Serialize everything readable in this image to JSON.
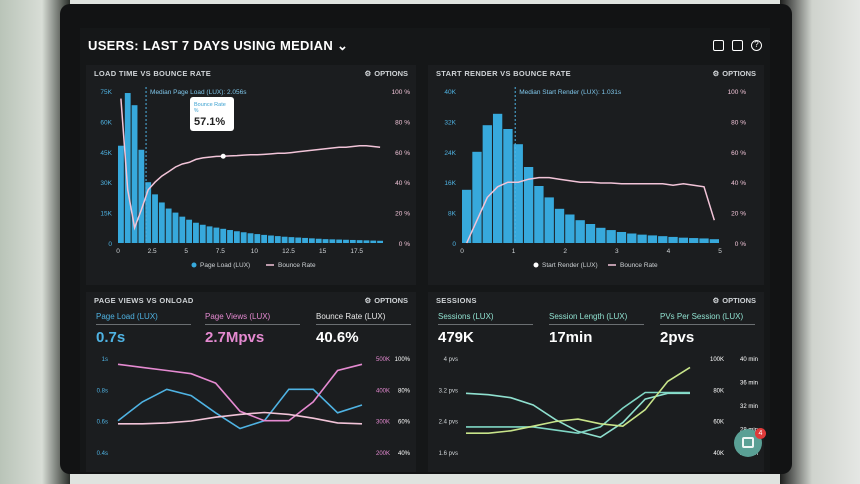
{
  "header": {
    "title": "USERS: LAST 7 DAYS USING MEDIAN",
    "icons": [
      "monitor-icon",
      "chart-icon",
      "help-icon"
    ]
  },
  "panel_load": {
    "title": "LOAD TIME VS BOUNCE RATE",
    "options_label": "OPTIONS",
    "tooltip_label": "Bounce Rate",
    "tooltip_sub": "%",
    "tooltip_value": "57.1%",
    "median_label": "Median Page Load (LUX): 2.056s"
  },
  "panel_render": {
    "title": "START RENDER VS BOUNCE RATE",
    "options_label": "OPTIONS",
    "median_label": "Median Start Render (LUX): 1.031s"
  },
  "panel_views": {
    "title": "PAGE VIEWS VS ONLOAD",
    "options_label": "OPTIONS",
    "metrics": [
      {
        "label": "Page Load (LUX)",
        "value": "0.7s"
      },
      {
        "label": "Page Views (LUX)",
        "value": "2.7Mpvs"
      },
      {
        "label": "Bounce Rate (LUX)",
        "value": "40.6%"
      }
    ]
  },
  "panel_sessions": {
    "title": "SESSIONS",
    "options_label": "OPTIONS",
    "metrics": [
      {
        "label": "Sessions (LUX)",
        "value": "479K"
      },
      {
        "label": "Session Length (LUX)",
        "value": "17min"
      },
      {
        "label": "PVs Per Session (LUX)",
        "value": "2pvs"
      }
    ]
  },
  "chat": {
    "badge": "4"
  },
  "colors": {
    "bar": "#37a9dc",
    "line": "#f2c4d8",
    "cyan": "#4fb3e3",
    "pink": "#e58ad1",
    "teal": "#8fe0cf",
    "lime": "#c8e48a"
  },
  "chart_data": [
    {
      "type": "bar",
      "title": "LOAD TIME VS BOUNCE RATE",
      "x": [
        0.25,
        0.75,
        1.25,
        1.75,
        2.25,
        2.75,
        3.25,
        3.75,
        4.25,
        4.75,
        5.25,
        5.75,
        6.25,
        6.75,
        7.25,
        7.75,
        8.25,
        8.75,
        9.25,
        9.75,
        10.25,
        10.75,
        11.25,
        11.75,
        12.25,
        12.75,
        13.25,
        13.75,
        14.25,
        14.75,
        15.25,
        15.75,
        16.25,
        16.75,
        17.25,
        17.75,
        18.25,
        18.75,
        19.25
      ],
      "series": [
        {
          "name": "Page Load (LUX)",
          "axis": "left",
          "values": [
            48000,
            74000,
            68000,
            46000,
            30000,
            24000,
            20000,
            17000,
            15000,
            13000,
            11500,
            10000,
            9000,
            8200,
            7600,
            7000,
            6400,
            5800,
            5300,
            4800,
            4400,
            4000,
            3700,
            3400,
            3100,
            2900,
            2700,
            2500,
            2300,
            2100,
            1900,
            1800,
            1700,
            1600,
            1500,
            1400,
            1300,
            1200,
            1100
          ]
        },
        {
          "name": "Bounce Rate",
          "axis": "right",
          "values": [
            95,
            35,
            10,
            22,
            35,
            40,
            44,
            47,
            50,
            52,
            53,
            55,
            56,
            56.5,
            57,
            57.1,
            57.3,
            57.5,
            57.8,
            58,
            58,
            58.3,
            58.6,
            59,
            59,
            59.5,
            60,
            60.5,
            61,
            61.5,
            62,
            62.5,
            63,
            63,
            63.5,
            64,
            64,
            63.5,
            63
          ]
        }
      ],
      "xticks": [
        "0",
        "2.5",
        "5",
        "7.5",
        "10",
        "12.5",
        "15",
        "17.5"
      ],
      "yticks_left": [
        "0",
        "15K",
        "30K",
        "45K",
        "60K",
        "75K"
      ],
      "yticks_right": [
        "0 %",
        "20 %",
        "40 %",
        "60 %",
        "80 %",
        "100 %"
      ],
      "ylim": [
        0,
        75000
      ],
      "ylim_right": [
        0,
        100
      ],
      "median_x": 2.056,
      "legend": [
        "Page Load (LUX)",
        "Bounce Rate"
      ]
    },
    {
      "type": "bar",
      "title": "START RENDER VS BOUNCE RATE",
      "x": [
        0.1,
        0.3,
        0.5,
        0.7,
        0.9,
        1.1,
        1.3,
        1.5,
        1.7,
        1.9,
        2.1,
        2.3,
        2.5,
        2.7,
        2.9,
        3.1,
        3.3,
        3.5,
        3.7,
        3.9,
        4.1,
        4.3,
        4.5,
        4.7,
        4.9
      ],
      "series": [
        {
          "name": "Start Render (LUX)",
          "axis": "left",
          "values": [
            14000,
            24000,
            31000,
            34000,
            30000,
            26000,
            20000,
            15000,
            12000,
            9000,
            7500,
            6000,
            5000,
            4000,
            3400,
            2900,
            2500,
            2200,
            2000,
            1800,
            1600,
            1400,
            1300,
            1200,
            1000
          ]
        },
        {
          "name": "Bounce Rate",
          "axis": "right",
          "values": [
            0,
            15,
            30,
            37,
            40,
            40,
            42,
            43,
            43,
            42,
            41,
            40,
            40,
            39.5,
            39.5,
            39,
            39,
            39,
            39,
            39,
            38,
            39,
            38,
            37,
            15
          ]
        }
      ],
      "xticks": [
        "0",
        "1",
        "2",
        "3",
        "4",
        "5"
      ],
      "yticks_left": [
        "0",
        "8K",
        "16K",
        "24K",
        "32K",
        "40K"
      ],
      "yticks_right": [
        "0 %",
        "20 %",
        "40 %",
        "60 %",
        "80 %",
        "100 %"
      ],
      "ylim": [
        0,
        40000
      ],
      "ylim_right": [
        0,
        100
      ],
      "median_x": 1.031,
      "legend": [
        "Start Render (LUX)",
        "Bounce Rate"
      ]
    },
    {
      "type": "line",
      "title": "PAGE VIEWS VS ONLOAD",
      "x": [
        0,
        1,
        2,
        3,
        4,
        5,
        6,
        7,
        8,
        9,
        10
      ],
      "series": [
        {
          "name": "Page Load (LUX)",
          "axis": "left",
          "values": [
            0.6,
            0.72,
            0.8,
            0.76,
            0.65,
            0.55,
            0.6,
            0.8,
            0.8,
            0.65,
            0.7
          ]
        },
        {
          "name": "Page Views (LUX)",
          "axis": "right_views",
          "values": [
            480,
            470,
            460,
            450,
            420,
            330,
            300,
            300,
            360,
            460,
            480
          ]
        },
        {
          "name": "Bounce Rate (LUX)",
          "axis": "right_pct",
          "values": [
            30,
            30,
            31,
            33,
            37,
            40,
            42,
            40,
            36,
            31,
            30
          ]
        }
      ],
      "yticks_left": [
        "0.4s",
        "0.6s",
        "0.8s",
        "1s"
      ],
      "yticks_views": [
        "200K",
        "300K",
        "400K",
        "500K"
      ],
      "yticks_pct": [
        "40%",
        "60%",
        "80%",
        "100%"
      ]
    },
    {
      "type": "line",
      "title": "SESSIONS",
      "x": [
        0,
        1,
        2,
        3,
        4,
        5,
        6,
        7,
        8,
        9,
        10
      ],
      "series": [
        {
          "name": "Sessions (LUX)",
          "axis": "left",
          "values": [
            3.2,
            3.15,
            3.05,
            2.8,
            2.3,
            1.9,
            1.7,
            2.2,
            3.0,
            3.2,
            3.2
          ]
        },
        {
          "name": "Session Length (LUX)",
          "axis": "right",
          "values": [
            20,
            20,
            20,
            20,
            19,
            18,
            20,
            26,
            31,
            31,
            31
          ]
        },
        {
          "name": "PVs Per Session (LUX)",
          "axis": "right",
          "values": [
            8,
            8,
            9,
            11,
            13,
            14,
            12,
            11,
            18,
            30,
            36
          ]
        }
      ],
      "yticks_left": [
        "1.6 pvs",
        "2.4 pvs",
        "3.2 pvs",
        "4 pvs"
      ],
      "yticks_mid": [
        "40K",
        "60K",
        "80K",
        "100K"
      ],
      "yticks_right": [
        "24 min",
        "28 min",
        "32 min",
        "36 min",
        "40 min"
      ]
    }
  ]
}
